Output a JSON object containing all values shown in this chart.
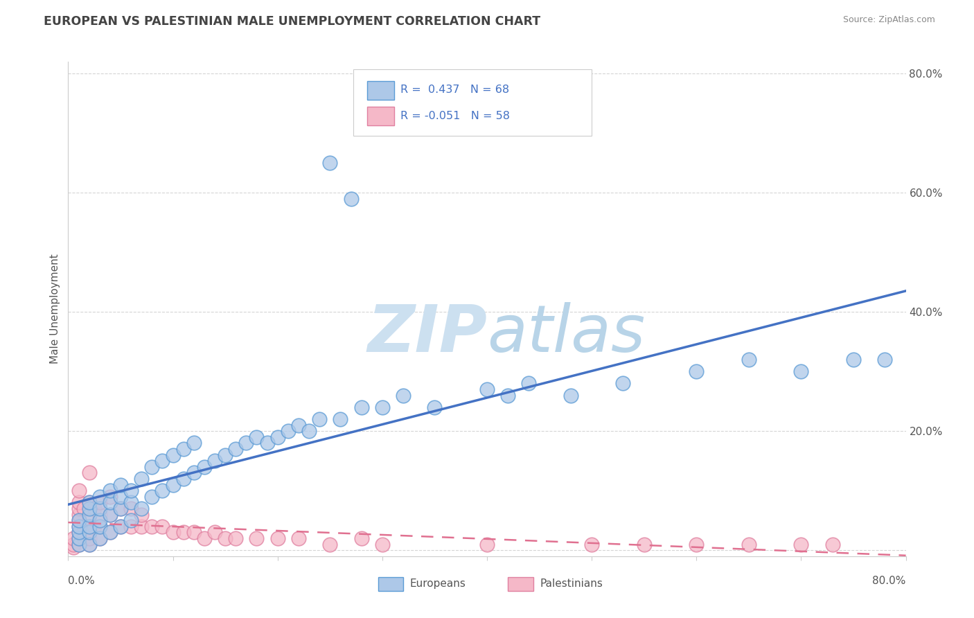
{
  "title": "EUROPEAN VS PALESTINIAN MALE UNEMPLOYMENT CORRELATION CHART",
  "source_text": "Source: ZipAtlas.com",
  "ylabel": "Male Unemployment",
  "xlim": [
    0.0,
    0.8
  ],
  "ylim": [
    -0.01,
    0.82
  ],
  "europeans_R": 0.437,
  "europeans_N": 68,
  "palestinians_R": -0.051,
  "palestinians_N": 58,
  "blue_color": "#adc8e8",
  "blue_edge_color": "#5b9bd5",
  "blue_line_color": "#4472c4",
  "pink_color": "#f5b8c8",
  "pink_edge_color": "#e080a0",
  "pink_line_color": "#e07090",
  "title_color": "#444444",
  "source_color": "#888888",
  "watermark_color": "#cce0f0",
  "axis_color": "#cccccc",
  "grid_color": "#d5d5d5",
  "europeans_x": [
    0.01,
    0.01,
    0.01,
    0.01,
    0.01,
    0.02,
    0.02,
    0.02,
    0.02,
    0.02,
    0.02,
    0.03,
    0.03,
    0.03,
    0.03,
    0.03,
    0.04,
    0.04,
    0.04,
    0.04,
    0.05,
    0.05,
    0.05,
    0.05,
    0.06,
    0.06,
    0.06,
    0.07,
    0.07,
    0.08,
    0.08,
    0.09,
    0.09,
    0.1,
    0.1,
    0.11,
    0.11,
    0.12,
    0.12,
    0.13,
    0.14,
    0.15,
    0.16,
    0.17,
    0.18,
    0.19,
    0.2,
    0.21,
    0.22,
    0.23,
    0.24,
    0.26,
    0.28,
    0.3,
    0.32,
    0.35,
    0.4,
    0.42,
    0.44,
    0.48,
    0.53,
    0.6,
    0.65,
    0.7,
    0.75,
    0.78,
    0.25,
    0.27
  ],
  "europeans_y": [
    0.01,
    0.02,
    0.03,
    0.04,
    0.05,
    0.01,
    0.03,
    0.04,
    0.06,
    0.07,
    0.08,
    0.02,
    0.04,
    0.05,
    0.07,
    0.09,
    0.03,
    0.06,
    0.08,
    0.1,
    0.04,
    0.07,
    0.09,
    0.11,
    0.05,
    0.08,
    0.1,
    0.07,
    0.12,
    0.09,
    0.14,
    0.1,
    0.15,
    0.11,
    0.16,
    0.12,
    0.17,
    0.13,
    0.18,
    0.14,
    0.15,
    0.16,
    0.17,
    0.18,
    0.19,
    0.18,
    0.19,
    0.2,
    0.21,
    0.2,
    0.22,
    0.22,
    0.24,
    0.24,
    0.26,
    0.24,
    0.27,
    0.26,
    0.28,
    0.26,
    0.28,
    0.3,
    0.32,
    0.3,
    0.32,
    0.32,
    0.65,
    0.59
  ],
  "palestinians_x": [
    0.005,
    0.005,
    0.005,
    0.01,
    0.01,
    0.01,
    0.01,
    0.01,
    0.01,
    0.01,
    0.01,
    0.01,
    0.015,
    0.015,
    0.015,
    0.02,
    0.02,
    0.02,
    0.02,
    0.02,
    0.025,
    0.025,
    0.03,
    0.03,
    0.03,
    0.03,
    0.04,
    0.04,
    0.04,
    0.05,
    0.05,
    0.06,
    0.06,
    0.07,
    0.07,
    0.08,
    0.09,
    0.1,
    0.11,
    0.12,
    0.13,
    0.14,
    0.15,
    0.16,
    0.18,
    0.2,
    0.22,
    0.25,
    0.28,
    0.3,
    0.4,
    0.5,
    0.55,
    0.6,
    0.65,
    0.7,
    0.73,
    0.02
  ],
  "palestinians_y": [
    0.005,
    0.01,
    0.02,
    0.01,
    0.02,
    0.03,
    0.04,
    0.05,
    0.06,
    0.07,
    0.08,
    0.1,
    0.02,
    0.04,
    0.07,
    0.01,
    0.02,
    0.03,
    0.05,
    0.08,
    0.04,
    0.07,
    0.02,
    0.04,
    0.06,
    0.08,
    0.03,
    0.06,
    0.09,
    0.04,
    0.07,
    0.04,
    0.07,
    0.04,
    0.06,
    0.04,
    0.04,
    0.03,
    0.03,
    0.03,
    0.02,
    0.03,
    0.02,
    0.02,
    0.02,
    0.02,
    0.02,
    0.01,
    0.02,
    0.01,
    0.01,
    0.01,
    0.01,
    0.01,
    0.01,
    0.01,
    0.01,
    0.13
  ]
}
